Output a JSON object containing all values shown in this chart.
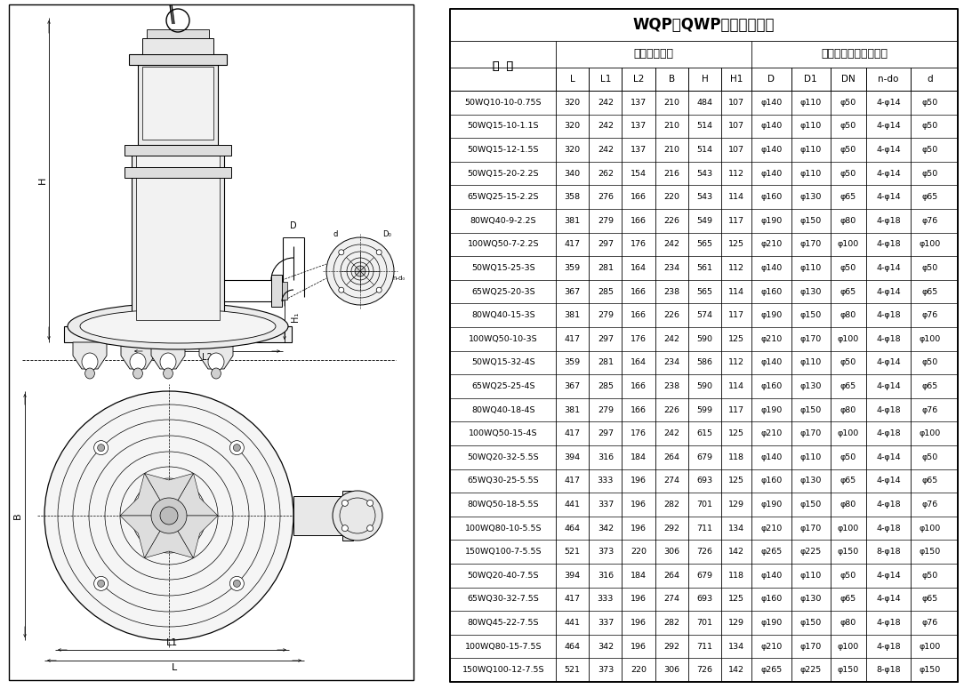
{
  "title": "WQP（QWP）安装尺寸表",
  "header1_model": "型  号",
  "header1_ext": "外形安装尺寸",
  "header1_pump": "泵出口法兰及连接尺寸",
  "col_names": [
    "型  号",
    "L",
    "L1",
    "L2",
    "B",
    "H",
    "H1",
    "D",
    "D1",
    "DN",
    "n-do",
    "d"
  ],
  "rows": [
    [
      "50WQ10-10-0.75S",
      "320",
      "242",
      "137",
      "210",
      "484",
      "107",
      "φ140",
      "φ110",
      "φ50",
      "4-φ14",
      "φ50"
    ],
    [
      "50WQ15-10-1.1S",
      "320",
      "242",
      "137",
      "210",
      "514",
      "107",
      "φ140",
      "φ110",
      "φ50",
      "4-φ14",
      "φ50"
    ],
    [
      "50WQ15-12-1.5S",
      "320",
      "242",
      "137",
      "210",
      "514",
      "107",
      "φ140",
      "φ110",
      "φ50",
      "4-φ14",
      "φ50"
    ],
    [
      "50WQ15-20-2.2S",
      "340",
      "262",
      "154",
      "216",
      "543",
      "112",
      "φ140",
      "φ110",
      "φ50",
      "4-φ14",
      "φ50"
    ],
    [
      "65WQ25-15-2.2S",
      "358",
      "276",
      "166",
      "220",
      "543",
      "114",
      "φ160",
      "φ130",
      "φ65",
      "4-φ14",
      "φ65"
    ],
    [
      "80WQ40-9-2.2S",
      "381",
      "279",
      "166",
      "226",
      "549",
      "117",
      "φ190",
      "φ150",
      "φ80",
      "4-φ18",
      "φ76"
    ],
    [
      "100WQ50-7-2.2S",
      "417",
      "297",
      "176",
      "242",
      "565",
      "125",
      "φ210",
      "φ170",
      "φ100",
      "4-φ18",
      "φ100"
    ],
    [
      "50WQ15-25-3S",
      "359",
      "281",
      "164",
      "234",
      "561",
      "112",
      "φ140",
      "φ110",
      "φ50",
      "4-φ14",
      "φ50"
    ],
    [
      "65WQ25-20-3S",
      "367",
      "285",
      "166",
      "238",
      "565",
      "114",
      "φ160",
      "φ130",
      "φ65",
      "4-φ14",
      "φ65"
    ],
    [
      "80WQ40-15-3S",
      "381",
      "279",
      "166",
      "226",
      "574",
      "117",
      "φ190",
      "φ150",
      "φ80",
      "4-φ18",
      "φ76"
    ],
    [
      "100WQ50-10-3S",
      "417",
      "297",
      "176",
      "242",
      "590",
      "125",
      "φ210",
      "φ170",
      "φ100",
      "4-φ18",
      "φ100"
    ],
    [
      "50WQ15-32-4S",
      "359",
      "281",
      "164",
      "234",
      "586",
      "112",
      "φ140",
      "φ110",
      "φ50",
      "4-φ14",
      "φ50"
    ],
    [
      "65WQ25-25-4S",
      "367",
      "285",
      "166",
      "238",
      "590",
      "114",
      "φ160",
      "φ130",
      "φ65",
      "4-φ14",
      "φ65"
    ],
    [
      "80WQ40-18-4S",
      "381",
      "279",
      "166",
      "226",
      "599",
      "117",
      "φ190",
      "φ150",
      "φ80",
      "4-φ18",
      "φ76"
    ],
    [
      "100WQ50-15-4S",
      "417",
      "297",
      "176",
      "242",
      "615",
      "125",
      "φ210",
      "φ170",
      "φ100",
      "4-φ18",
      "φ100"
    ],
    [
      "50WQ20-32-5.5S",
      "394",
      "316",
      "184",
      "264",
      "679",
      "118",
      "φ140",
      "φ110",
      "φ50",
      "4-φ14",
      "φ50"
    ],
    [
      "65WQ30-25-5.5S",
      "417",
      "333",
      "196",
      "274",
      "693",
      "125",
      "φ160",
      "φ130",
      "φ65",
      "4-φ14",
      "φ65"
    ],
    [
      "80WQ50-18-5.5S",
      "441",
      "337",
      "196",
      "282",
      "701",
      "129",
      "φ190",
      "φ150",
      "φ80",
      "4-φ18",
      "φ76"
    ],
    [
      "100WQ80-10-5.5S",
      "464",
      "342",
      "196",
      "292",
      "711",
      "134",
      "φ210",
      "φ170",
      "φ100",
      "4-φ18",
      "φ100"
    ],
    [
      "150WQ100-7-5.5S",
      "521",
      "373",
      "220",
      "306",
      "726",
      "142",
      "φ265",
      "φ225",
      "φ150",
      "8-φ18",
      "φ150"
    ],
    [
      "50WQ20-40-7.5S",
      "394",
      "316",
      "184",
      "264",
      "679",
      "118",
      "φ140",
      "φ110",
      "φ50",
      "4-φ14",
      "φ50"
    ],
    [
      "65WQ30-32-7.5S",
      "417",
      "333",
      "196",
      "274",
      "693",
      "125",
      "φ160",
      "φ130",
      "φ65",
      "4-φ14",
      "φ65"
    ],
    [
      "80WQ45-22-7.5S",
      "441",
      "337",
      "196",
      "282",
      "701",
      "129",
      "φ190",
      "φ150",
      "φ80",
      "4-φ18",
      "φ76"
    ],
    [
      "100WQ80-15-7.5S",
      "464",
      "342",
      "196",
      "292",
      "711",
      "134",
      "φ210",
      "φ170",
      "φ100",
      "4-φ18",
      "φ100"
    ],
    [
      "150WQ100-12-7.5S",
      "521",
      "373",
      "220",
      "306",
      "726",
      "142",
      "φ265",
      "φ225",
      "φ150",
      "8-φ18",
      "φ150"
    ]
  ],
  "bg_color": "#ffffff",
  "line_color": "#000000",
  "text_color": "#000000"
}
